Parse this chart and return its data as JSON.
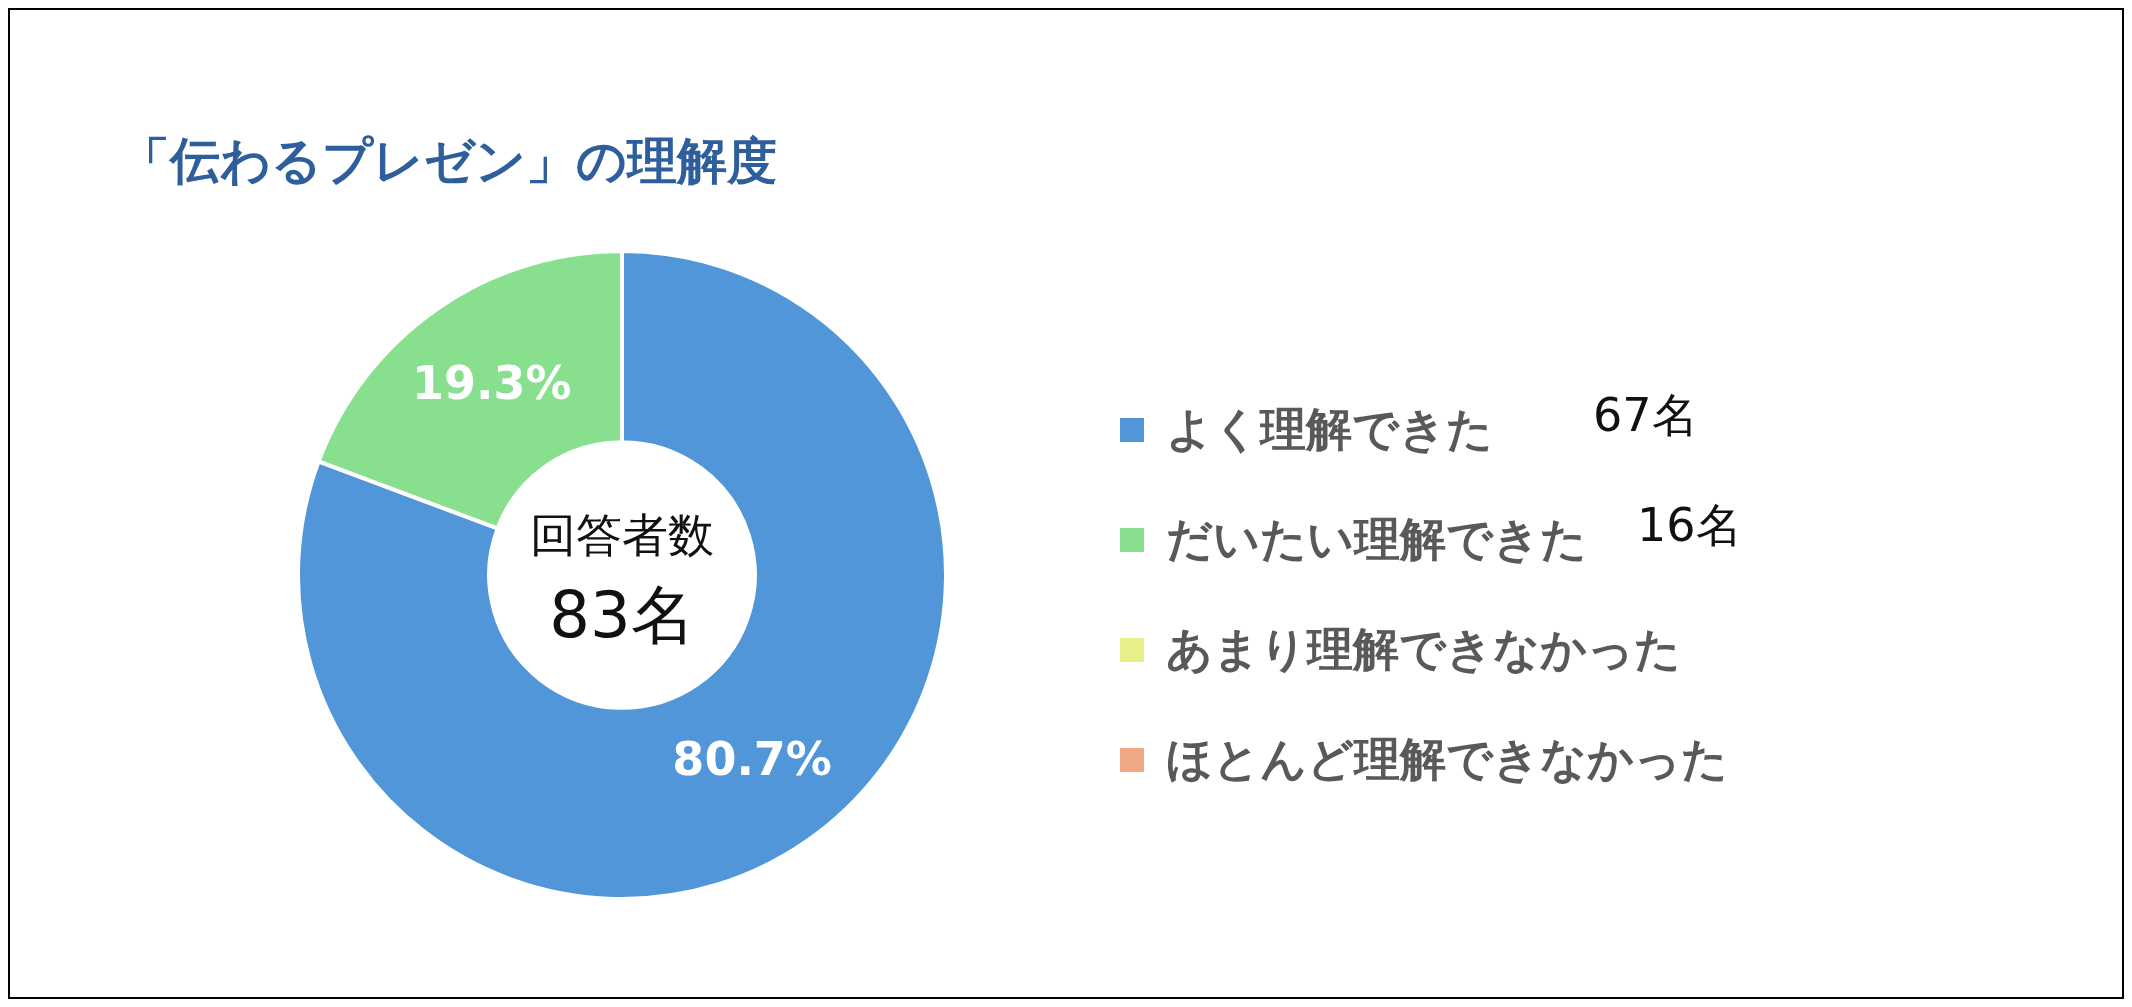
{
  "chart_data": {
    "type": "donut",
    "title": "「伝わるプレゼン」の理解度",
    "categories": [
      "よく理解できた",
      "だいたい理解できた",
      "あまり理解できなかった",
      "ほとんど理解できなかった"
    ],
    "values": [
      80.7,
      19.3,
      0,
      0
    ],
    "colors": [
      "#5096d9",
      "#88e08f",
      "#e8ef8a",
      "#f0a884"
    ],
    "value_labels": [
      "80.7%",
      "19.3%",
      null,
      null
    ],
    "legend": "right",
    "annotations": [
      "回答者数",
      "83名",
      {
        "text": "67名",
        "x": "よく理解できた"
      },
      {
        "text": "16名",
        "x": "だいたい理解できた"
      }
    ]
  }
}
